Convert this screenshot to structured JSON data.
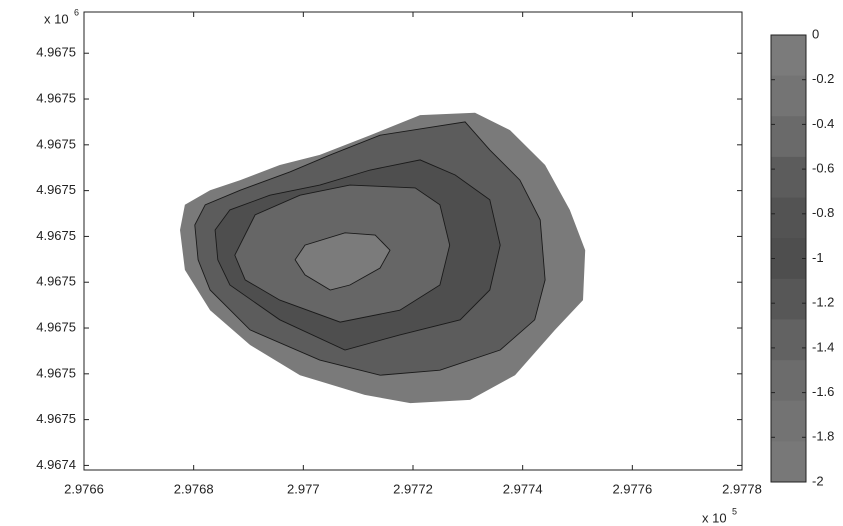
{
  "chart_data": {
    "type": "contour",
    "xlim": [
      2.9766,
      2.9778
    ],
    "xticks": [
      2.9766,
      2.9768,
      2.977,
      2.9772,
      2.9774,
      2.9776,
      2.9778
    ],
    "x_offset_text": {
      "base": "x 10",
      "exponent": "5"
    },
    "ylim": [
      4.967441,
      4.967541
    ],
    "yticks": [
      {
        "value": 4.967442,
        "label": "4.9674"
      },
      {
        "value": 4.967452,
        "label": "4.9675"
      },
      {
        "value": 4.967462,
        "label": "4.9675"
      },
      {
        "value": 4.967472,
        "label": "4.9675"
      },
      {
        "value": 4.967482,
        "label": "4.9675"
      },
      {
        "value": 4.967492,
        "label": "4.9675"
      },
      {
        "value": 4.967502,
        "label": "4.9675"
      },
      {
        "value": 4.967512,
        "label": "4.9675"
      },
      {
        "value": 4.967522,
        "label": "4.9675"
      },
      {
        "value": 4.967532,
        "label": "4.9675"
      }
    ],
    "y_offset_text": {
      "base": "x 10",
      "exponent": "6"
    },
    "regions": [
      {
        "color": "#7a7a7a",
        "x": [
          2.976775,
          2.976784,
          2.97683,
          2.976885,
          2.976957,
          2.97703,
          2.977122,
          2.977213,
          2.977313,
          2.977377,
          2.977441,
          2.977486,
          2.977514,
          2.97751,
          2.977459,
          2.977386,
          2.977304,
          2.977195,
          2.977112,
          2.976994,
          2.976903,
          2.97683,
          2.976784
        ],
        "y": [
          4.9674934,
          4.9674989,
          4.9675021,
          4.9675043,
          4.9675076,
          4.9675098,
          4.9675141,
          4.9675185,
          4.967519,
          4.9675152,
          4.9675076,
          4.9674978,
          4.967489,
          4.9674781,
          4.9674716,
          4.9674617,
          4.9674563,
          4.9674556,
          4.9674574,
          4.9674617,
          4.9674683,
          4.9674759,
          4.9674847
        ]
      },
      {
        "color": "#5c5c5c",
        "x": [
          2.976802,
          2.976821,
          2.976885,
          2.976976,
          2.977049,
          2.97714,
          2.977295,
          2.97734,
          2.977395,
          2.977432,
          2.977441,
          2.977422,
          2.977359,
          2.977249,
          2.97714,
          2.97703,
          2.976903,
          2.97683,
          2.976808
        ],
        "y": [
          4.9674945,
          4.9674989,
          4.9675021,
          4.9675061,
          4.9675098,
          4.9675141,
          4.967517,
          4.9675109,
          4.9675043,
          4.9674956,
          4.9674825,
          4.9674738,
          4.9674672,
          4.9674628,
          4.9674617,
          4.967465,
          4.9674716,
          4.9674803,
          4.9674869
        ]
      },
      {
        "color": "#4e4e4e",
        "x": [
          2.976839,
          2.976866,
          2.976939,
          2.97703,
          2.977122,
          2.977213,
          2.977277,
          2.97734,
          2.977359,
          2.97734,
          2.977286,
          2.977176,
          2.977076,
          2.976957,
          2.976866,
          2.976844
        ],
        "y": [
          4.9674934,
          4.9674978,
          4.967501,
          4.9675032,
          4.9675065,
          4.9675087,
          4.9675054,
          4.9675,
          4.9674901,
          4.9674803,
          4.9674738,
          4.9674705,
          4.9674672,
          4.9674738,
          4.9674814,
          4.9674869
        ]
      },
      {
        "color": "#666666",
        "x": [
          2.976875,
          2.976912,
          2.976994,
          2.977085,
          2.977204,
          2.977249,
          2.977267,
          2.977249,
          2.977176,
          2.977067,
          2.976957,
          2.976894
        ],
        "y": [
          4.9674879,
          4.9674967,
          4.967501,
          4.9675032,
          4.9675026,
          4.9674989,
          4.9674901,
          4.9674814,
          4.9674759,
          4.9674733,
          4.9674781,
          4.9674825
        ]
      },
      {
        "color": "#7b7b7b",
        "x": [
          2.976985,
          2.977003,
          2.977076,
          2.977131,
          2.977158,
          2.97714,
          2.977085,
          2.977049,
          2.977003
        ],
        "y": [
          4.9674869,
          4.9674901,
          4.9674928,
          4.9674923,
          4.967489,
          4.9674851,
          4.9674814,
          4.9674803,
          4.9674836
        ]
      }
    ],
    "colorbar": {
      "lim": [
        -2,
        0
      ],
      "ticks": [
        0,
        -0.2,
        -0.4,
        -0.6,
        -0.8,
        -1,
        -1.2,
        -1.4,
        -1.6,
        -1.8,
        -2
      ],
      "colors": [
        "#7b7b7b",
        "#747474",
        "#6a6a6a",
        "#5c5c5c",
        "#535353",
        "#4e4e4e",
        "#575757",
        "#626262",
        "#6c6c6c",
        "#737373",
        "#787878"
      ]
    }
  }
}
